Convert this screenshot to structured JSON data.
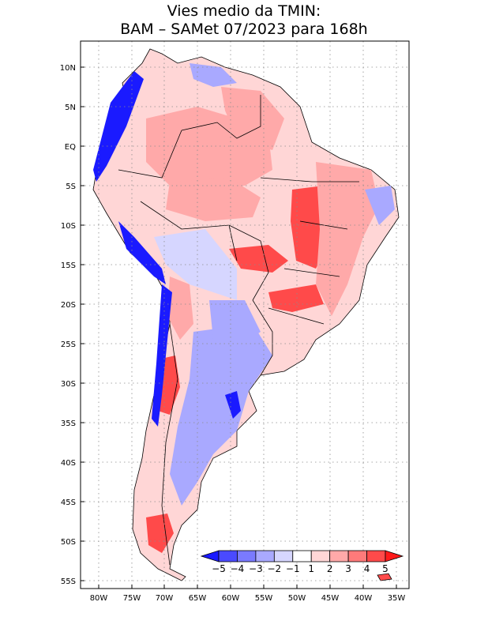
{
  "title_line1": "Vies medio da TMIN:",
  "title_line2": "BAM – SAMet 07/2023  para 168h",
  "lat_ticks": [
    "10N",
    "5N",
    "EQ",
    "5S",
    "10S",
    "15S",
    "20S",
    "25S",
    "30S",
    "35S",
    "40S",
    "45S",
    "50S",
    "55S"
  ],
  "lon_ticks": [
    "80W",
    "75W",
    "70W",
    "65W",
    "60W",
    "55W",
    "50W",
    "45W",
    "40W",
    "35W"
  ],
  "colorbar": {
    "labels": [
      "−5",
      "−4",
      "−3",
      "−2",
      "−1",
      "1",
      "2",
      "3",
      "4",
      "5"
    ],
    "colors": [
      "#1a1aff",
      "#4a4aff",
      "#7a7aff",
      "#a9a9ff",
      "#d6d6ff",
      "#ffffff",
      "#ffd6d6",
      "#ffa9a9",
      "#ff7a7a",
      "#ff4a4a",
      "#ff1a1a"
    ]
  },
  "map_colors": {
    "frame": "#000000",
    "grid": "#8c8c8c",
    "coast": "#000000",
    "strong_warm": "#ff4a4a",
    "warm": "#ffa9a9",
    "light_warm": "#ffd6d6",
    "neutral": "#ffffff",
    "light_cool": "#d6d6ff",
    "cool": "#a9a9ff",
    "strong_cool": "#1a1aff"
  }
}
